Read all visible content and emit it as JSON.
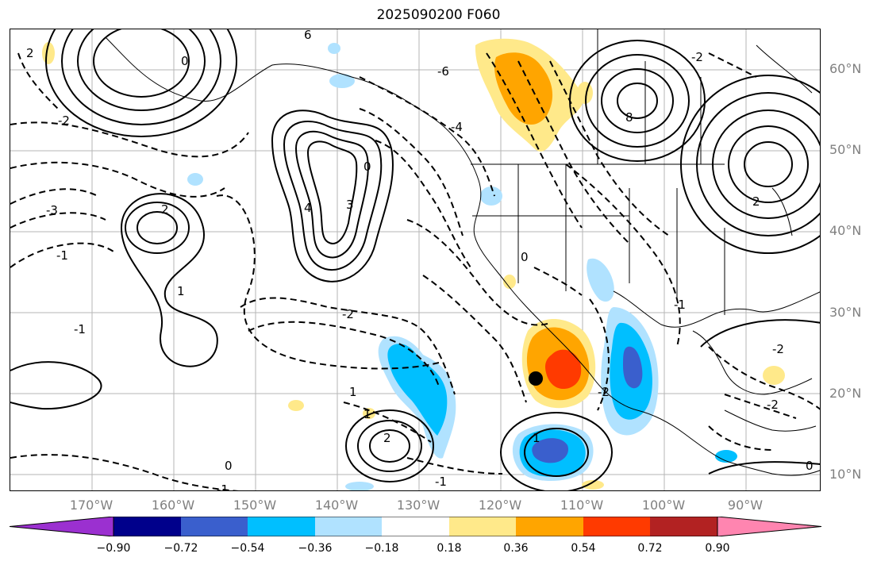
{
  "title": "2025090200 F060",
  "lat_labels": [
    "60°N",
    "50°N",
    "40°N",
    "30°N",
    "20°N",
    "10°N"
  ],
  "lon_labels": [
    "170°W",
    "160°W",
    "150°W",
    "140°W",
    "130°W",
    "120°W",
    "110°W",
    "100°W",
    "90°W"
  ],
  "colorbar": {
    "ticks": [
      "−0.90",
      "−0.72",
      "−0.54",
      "−0.36",
      "−0.18",
      "0.18",
      "0.36",
      "0.54",
      "0.72",
      "0.90"
    ],
    "colors": [
      "#9b30d0",
      "#00008b",
      "#3a5fcd",
      "#00bfff",
      "#b0e2ff",
      "#ffffff",
      "#ffe98a",
      "#ffa500",
      "#ff3a00",
      "#b22222",
      "#ff85b0"
    ]
  },
  "contour_labels": [
    "6",
    "2",
    "0",
    "-6",
    "-2",
    "-4",
    "8",
    "-3",
    "-1",
    "1",
    "2",
    "-1",
    "-2",
    "1",
    "3",
    "4",
    "0",
    "-1",
    "1",
    "2",
    "-2",
    "-1",
    "-2",
    "0",
    "-1",
    "0",
    "1",
    "2",
    "-2",
    "0",
    "-2"
  ],
  "marker": "station"
}
